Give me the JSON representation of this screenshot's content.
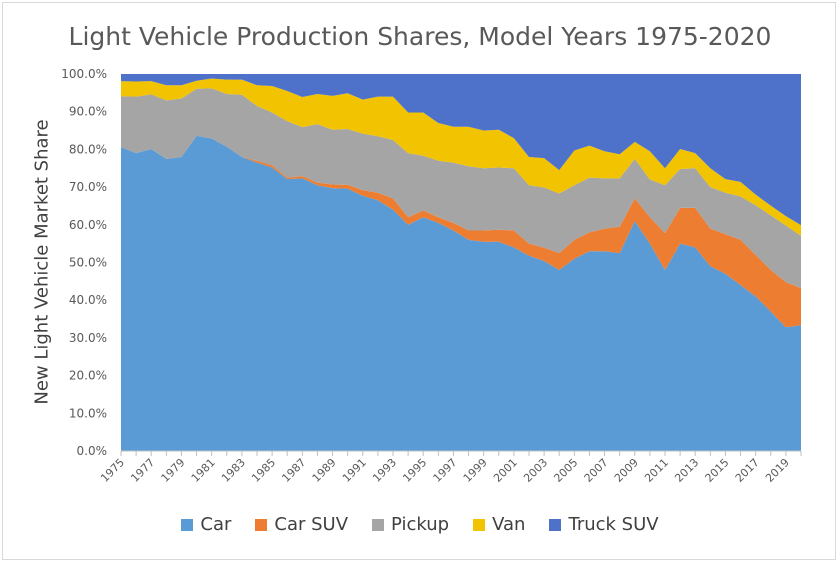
{
  "chart_data": {
    "type": "area",
    "stacked": true,
    "title": "Light Vehicle Production Shares, Model Years 1975-2020",
    "ylabel": "New Light Vehicle Market Share",
    "xlabel": "",
    "ylim": [
      0,
      100
    ],
    "y_ticks": [
      "0.0%",
      "10.0%",
      "20.0%",
      "30.0%",
      "40.0%",
      "50.0%",
      "60.0%",
      "70.0%",
      "80.0%",
      "90.0%",
      "100.0%"
    ],
    "x_tick_labels": [
      "1975",
      "1977",
      "1979",
      "1981",
      "1983",
      "1985",
      "1987",
      "1989",
      "1991",
      "1993",
      "1995",
      "1997",
      "1999",
      "2001",
      "2003",
      "2005",
      "2007",
      "2009",
      "2011",
      "2013",
      "2015",
      "2017",
      "2019"
    ],
    "legend_position": "bottom",
    "x": [
      1975,
      1976,
      1977,
      1978,
      1979,
      1980,
      1981,
      1982,
      1983,
      1984,
      1985,
      1986,
      1987,
      1988,
      1989,
      1990,
      1991,
      1992,
      1993,
      1994,
      1995,
      1996,
      1997,
      1998,
      1999,
      2000,
      2001,
      2002,
      2003,
      2004,
      2005,
      2006,
      2007,
      2008,
      2009,
      2010,
      2011,
      2012,
      2013,
      2014,
      2015,
      2016,
      2017,
      2018,
      2019,
      2020
    ],
    "series": [
      {
        "name": "Car",
        "color": "#5b9bd5",
        "values": [
          80.6,
          79.0,
          80.1,
          77.5,
          78.0,
          83.6,
          82.9,
          80.7,
          78.0,
          76.5,
          75.2,
          72.1,
          72.3,
          70.5,
          69.7,
          69.6,
          67.7,
          66.5,
          64.0,
          60.0,
          62.0,
          60.5,
          58.5,
          56.0,
          55.5,
          55.5,
          54.0,
          51.8,
          50.4,
          48.0,
          51.0,
          53.0,
          53.0,
          52.5,
          61.0,
          55.0,
          48.0,
          55.0,
          54.0,
          49.0,
          47.0,
          44.0,
          41.0,
          37.0,
          32.8,
          33.4
        ]
      },
      {
        "name": "Car SUV",
        "color": "#ed7d31",
        "values": [
          0.0,
          0.0,
          0.0,
          0.0,
          0.0,
          0.0,
          0.0,
          0.0,
          0.0,
          0.5,
          0.6,
          0.4,
          0.6,
          0.7,
          1.0,
          1.0,
          1.5,
          2.0,
          3.0,
          2.0,
          1.8,
          1.5,
          2.0,
          2.5,
          3.0,
          3.2,
          4.5,
          3.2,
          3.5,
          4.5,
          5.0,
          5.0,
          6.0,
          7.0,
          6.0,
          7.0,
          9.8,
          9.5,
          10.5,
          10.0,
          10.5,
          12.0,
          11.0,
          11.0,
          12.0,
          9.8
        ]
      },
      {
        "name": "Pickup",
        "color": "#a5a5a5",
        "values": [
          13.5,
          15.0,
          14.5,
          15.5,
          15.5,
          12.5,
          13.3,
          14.0,
          16.5,
          14.5,
          14.0,
          15.0,
          13.0,
          15.5,
          14.5,
          14.8,
          15.0,
          15.0,
          15.5,
          17.0,
          14.5,
          15.0,
          16.0,
          17.0,
          16.5,
          16.5,
          16.5,
          15.5,
          16.0,
          15.8,
          14.5,
          14.5,
          13.3,
          12.8,
          10.5,
          10.0,
          12.7,
          10.3,
          10.5,
          11.0,
          11.0,
          11.5,
          13.2,
          14.5,
          15.0,
          13.9
        ]
      },
      {
        "name": "Van",
        "color": "#f2c300",
        "values": [
          4.0,
          4.0,
          3.5,
          4.0,
          3.5,
          2.1,
          2.6,
          3.8,
          4.0,
          5.5,
          7.0,
          8.0,
          8.0,
          8.0,
          9.0,
          9.5,
          9.0,
          10.5,
          11.5,
          10.8,
          11.5,
          10.0,
          9.5,
          10.5,
          10.0,
          10.0,
          8.0,
          7.5,
          7.8,
          6.2,
          9.2,
          8.5,
          7.2,
          6.4,
          4.5,
          7.5,
          4.5,
          5.3,
          4.0,
          5.0,
          3.6,
          3.9,
          2.8,
          2.6,
          2.5,
          2.8
        ]
      },
      {
        "name": "Truck SUV",
        "color": "#4e72c9",
        "values": [
          1.9,
          2.0,
          1.9,
          3.0,
          3.0,
          1.8,
          1.2,
          1.5,
          1.5,
          3.0,
          3.2,
          4.5,
          6.1,
          5.3,
          5.8,
          5.1,
          6.8,
          6.0,
          6.0,
          10.2,
          10.2,
          13.0,
          14.0,
          14.0,
          15.0,
          14.8,
          17.0,
          22.0,
          22.3,
          25.5,
          20.3,
          19.0,
          20.5,
          21.3,
          18.0,
          20.5,
          25.0,
          19.9,
          21.0,
          25.0,
          27.9,
          28.6,
          32.0,
          34.9,
          37.7,
          40.1
        ]
      }
    ]
  }
}
